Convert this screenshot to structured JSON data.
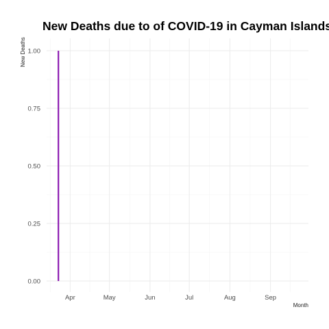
{
  "chart_data": {
    "type": "line",
    "title": "New Deaths due to of COVID-19 in Cayman Islands",
    "xlabel": "Month",
    "ylabel": "New Deaths",
    "x_ticks": [
      "Apr",
      "May",
      "Jun",
      "Jul",
      "Aug",
      "Sep"
    ],
    "y_ticks": [
      "0.00",
      "0.25",
      "0.50",
      "0.75",
      "1.00"
    ],
    "ylim": [
      0,
      1
    ],
    "xlim": [
      "2020-03-14",
      "2020-09-30"
    ],
    "grid": true,
    "legend": "none",
    "series": [
      {
        "color": "#8B1AB0",
        "x": [
          "2020-03-23",
          "2020-03-23"
        ],
        "values": [
          0,
          1
        ]
      }
    ]
  }
}
